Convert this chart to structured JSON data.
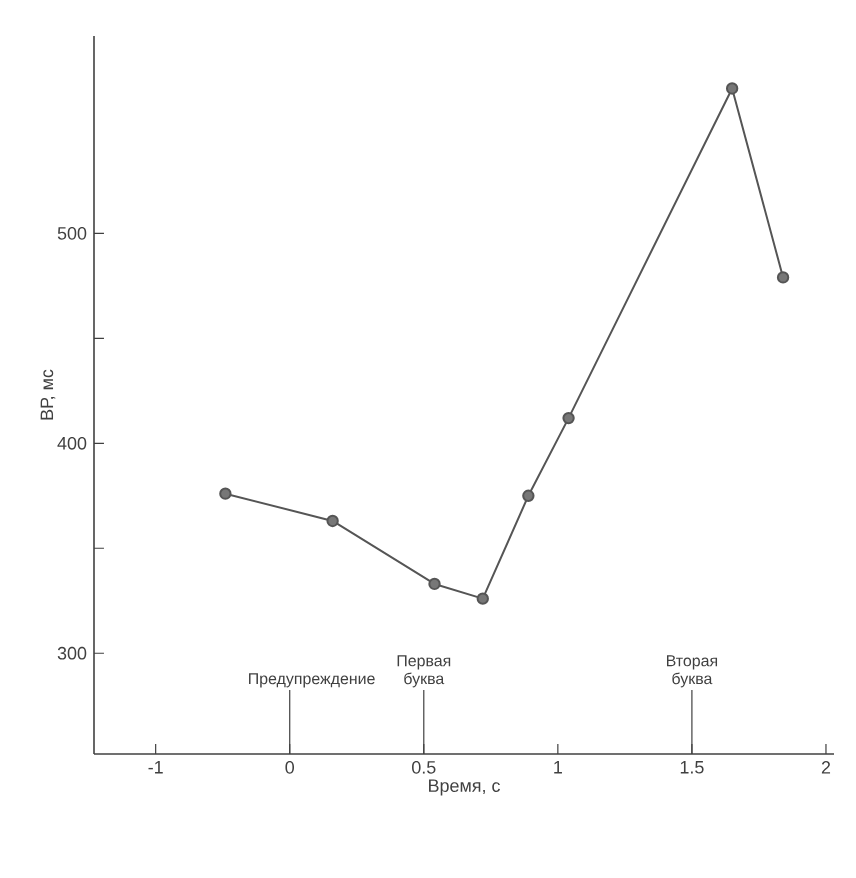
{
  "chart_data": {
    "type": "line",
    "xlabel": "Время, с",
    "ylabel": "ВР, мс",
    "x": [
      -0.24,
      0.16,
      0.54,
      0.72,
      0.89,
      1.04,
      1.65,
      1.84
    ],
    "series": [
      {
        "color": "#555555",
        "values": [
          376,
          363,
          333,
          326,
          375,
          412,
          569,
          479
        ]
      }
    ],
    "xlim": [
      -0.73,
      2.03
    ],
    "ylim": [
      252,
      594
    ],
    "xticks": [
      {
        "value": -0.5,
        "label": "-1"
      },
      0,
      0.5,
      1,
      1.5,
      2
    ],
    "yticks": [
      300,
      {
        "value": 350,
        "label": null
      },
      400,
      {
        "value": 450,
        "label": null
      },
      500
    ],
    "ref_lines": [
      {
        "axis": "x",
        "value": 0,
        "label": "Предупреждение"
      },
      {
        "axis": "x",
        "value": 0.5,
        "label": "Первая буква"
      },
      {
        "axis": "x",
        "value": 1.5,
        "label": "Вторая буква"
      }
    ],
    "marker": "circle",
    "line_style": "solid"
  }
}
